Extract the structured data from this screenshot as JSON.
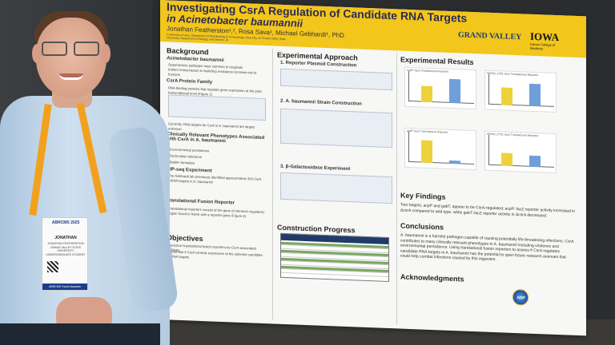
{
  "poster": {
    "title_line1": "Investigating CsrA Regulation of Candidate RNA Targets",
    "title_line2": "in Acinetobacter baumannii",
    "authors": "Jonathan Featherston¹,², Rosa Sava¹, Michael Gebhardt¹, PhD",
    "affiliations": "¹University of Iowa, Department of Microbiology & Immunology, Iowa City, IA  ²Grand Valley State University, Department of Biology, Des Moines, IA",
    "logo_gv": "GRAND VALLEY",
    "logo_iowa": "IOWA",
    "logo_iowa_sub": "Carver College of Medicine",
    "background": {
      "heading": "Background",
      "sub1": "Acinetobacter baumannii",
      "bullets1": [
        "Opportunistic pathogen most common in hospitals",
        "Indirect transmission & multidrug resistance increase risk to humans"
      ],
      "sub2": "CsrA Protein Family",
      "bullets2": [
        "RNA binding proteins that regulate gene expression at the post-transcriptional level (Figure 1)"
      ],
      "note": "Currently, RNA targets for CsrA in A. baumannii are largely unknown"
    },
    "phenotypes": {
      "heading": "Clinically Relevant Phenotypes Associated with CsrA in A. baumannii",
      "items": [
        "Environmental persistence",
        "Desiccation tolerance",
        "Biofilm formation"
      ]
    },
    "rip_seq": {
      "heading": "RIP-seq Experiment",
      "text": "The Gebhardt lab previously identified approximately 300 CsrA mRNA targets in A. baumannii"
    },
    "fusion": {
      "heading": "Translational Fusion Reporter",
      "text": "Translational reporters consist of the gene of interest's regulatory region fused in frame with a reporter gene (Figure 6)"
    },
    "objectives": {
      "heading": "Objectives",
      "items": [
        "Construct translational fusion reporters for CsrA-associated mRNAs",
        "Determine if CsrA controls expression of the selected candidate mRNA targets"
      ]
    },
    "approach": {
      "heading": "Experimental Approach",
      "step1": "1. Reporter Plasmid Construction",
      "step2": "2. A. baumannii Strain Construction",
      "step3": "3. β-Galactosidase Experiment",
      "progress_heading": "Construction Progress"
    },
    "results": {
      "heading": "Experimental Results",
      "charts": [
        {
          "label": "acpP::lacZ Translational Reporter"
        },
        {
          "label": "ABUW_1705::lacZ Translational Reporter"
        },
        {
          "label": "gabT::lacZ Translational Reporter"
        },
        {
          "label": "ABUW_2732::lacZ Translational Reporter"
        }
      ]
    },
    "key_findings": {
      "heading": "Key Findings",
      "text": "Two targets, acpP and gabT, appear to be CsrA-regulated; acpP::lacZ reporter activity increased in ΔcsrA compared to wild type, while gabT::lacZ reporter activity in ΔcsrA decreased."
    },
    "conclusions": {
      "heading": "Conclusions",
      "text": "A. baumannii is a harmful pathogen capable of causing potentially life-threatening infections. CsrA contributes to many clinically relevant phenotypes in A. baumannii including virulence and environmental persistence. Using translational fusion reporters to assess if CsrA regulates candidate RNA targets in A. baumannii has the potential to open future research avenues that could help combat infections caused by this organism."
    },
    "acknowledgments": {
      "heading": "Acknowledgments",
      "logo": "NSF"
    }
  },
  "badge": {
    "event": "ABRCMS 2025",
    "first_name": "JONATHAN",
    "full_name": "JONATHAN FEATHERSTON",
    "school": "GRAND VALLEY STATE UNIVERSITY",
    "role": "UNDERGRADUATE STUDENT",
    "footer": "ABRCMS Travel Awardee"
  },
  "colors": {
    "banner": "#f2c61b",
    "title": "#2c2c54",
    "lanyard": "#f2a11f",
    "shirt": "#b9d0e4",
    "bar_wt": "#efd23a",
    "bar_mut": "#6f9fd8"
  }
}
